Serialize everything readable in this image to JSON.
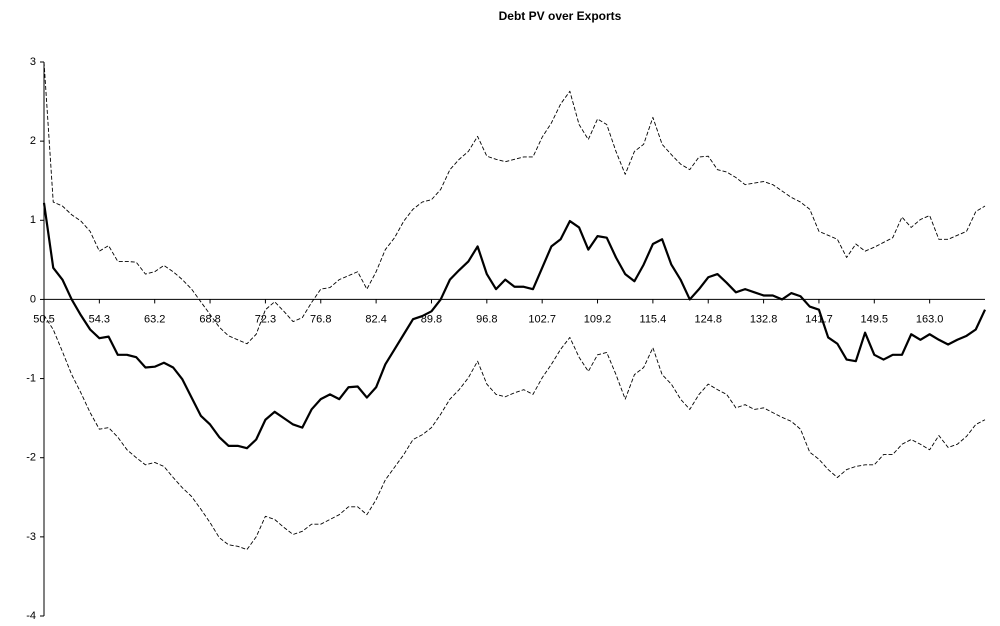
{
  "chart_data": {
    "type": "line",
    "title": "Debt PV over Exports",
    "categories": [
      "50.5",
      null,
      null,
      null,
      null,
      null,
      "54.3",
      null,
      null,
      null,
      null,
      null,
      "63.2",
      null,
      null,
      null,
      null,
      null,
      "68.8",
      null,
      null,
      null,
      null,
      null,
      "72.3",
      null,
      null,
      null,
      null,
      null,
      "76.8",
      null,
      null,
      null,
      null,
      null,
      "82.4",
      null,
      null,
      null,
      null,
      null,
      "89.8",
      null,
      null,
      null,
      null,
      null,
      "96.8",
      null,
      null,
      null,
      null,
      null,
      "102.7",
      null,
      null,
      null,
      null,
      null,
      "109.2",
      null,
      null,
      null,
      null,
      null,
      "115.4",
      null,
      null,
      null,
      null,
      null,
      "124.8",
      null,
      null,
      null,
      null,
      null,
      "132.8",
      null,
      null,
      null,
      null,
      null,
      "141.7",
      null,
      null,
      null,
      null,
      null,
      "149.5",
      null,
      null,
      null,
      null,
      null,
      "163.0",
      null,
      null,
      null,
      null,
      null,
      null
    ],
    "series": [
      {
        "color": "#000000",
        "dashed": false,
        "values": [
          1.22,
          0.4,
          0.25,
          0.0,
          -0.2,
          -0.38,
          -0.49,
          -0.47,
          -0.7,
          -0.7,
          -0.73,
          -0.86,
          -0.85,
          -0.8,
          -0.86,
          -1.01,
          -1.24,
          -1.47,
          -1.58,
          -1.74,
          -1.85,
          -1.85,
          -1.88,
          -1.77,
          -1.52,
          -1.42,
          -1.5,
          -1.58,
          -1.62,
          -1.39,
          -1.26,
          -1.2,
          -1.26,
          -1.11,
          -1.1,
          -1.24,
          -1.11,
          -0.82,
          -0.63,
          -0.44,
          -0.25,
          -0.21,
          -0.15,
          0,
          0.25,
          0.37,
          0.48,
          0.67,
          0.32,
          0.13,
          0.25,
          0.16,
          0.16,
          0.13,
          0.4,
          0.67,
          0.76,
          0.99,
          0.91,
          0.63,
          0.8,
          0.78,
          0.53,
          0.32,
          0.23,
          0.44,
          0.7,
          0.76,
          0.44,
          0.25,
          0,
          0.13,
          0.28,
          0.32,
          0.21,
          0.09,
          0.13,
          0.09,
          0.05,
          0.05,
          0,
          0.08,
          0.04,
          -0.09,
          -0.13,
          -0.48,
          -0.56,
          -0.76,
          -0.78,
          -0.42,
          -0.7,
          -0.76,
          -0.7,
          -0.7,
          -0.44,
          -0.51,
          -0.44,
          -0.51,
          -0.57,
          -0.51,
          -0.46,
          -0.38,
          -0.13
        ]
      },
      {
        "color": "#000000",
        "dashed": true,
        "values": [
          3.0,
          1.23,
          1.18,
          1.07,
          0.99,
          0.86,
          0.61,
          0.68,
          0.48,
          0.48,
          0.47,
          0.32,
          0.35,
          0.43,
          0.35,
          0.25,
          0.13,
          -0.03,
          -0.19,
          -0.35,
          -0.46,
          -0.51,
          -0.56,
          -0.44,
          -0.13,
          -0.03,
          -0.15,
          -0.28,
          -0.23,
          -0.04,
          0.13,
          0.15,
          0.25,
          0.3,
          0.35,
          0.13,
          0.35,
          0.63,
          0.78,
          0.99,
          1.14,
          1.23,
          1.26,
          1.39,
          1.64,
          1.77,
          1.87,
          2.06,
          1.81,
          1.77,
          1.74,
          1.77,
          1.8,
          1.8,
          2.05,
          2.23,
          2.47,
          2.63,
          2.21,
          2.02,
          2.28,
          2.21,
          1.87,
          1.58,
          1.87,
          1.96,
          2.3,
          1.96,
          1.83,
          1.71,
          1.64,
          1.8,
          1.81,
          1.64,
          1.61,
          1.54,
          1.45,
          1.47,
          1.49,
          1.45,
          1.37,
          1.29,
          1.23,
          1.14,
          0.86,
          0.81,
          0.76,
          0.53,
          0.7,
          0.61,
          0.66,
          0.72,
          0.78,
          1.04,
          0.91,
          1.01,
          1.06,
          0.76,
          0.76,
          0.81,
          0.86,
          1.11,
          1.18
        ]
      },
      {
        "color": "#000000",
        "dashed": true,
        "values": [
          -0.2,
          -0.38,
          -0.66,
          -0.95,
          -1.18,
          -1.43,
          -1.64,
          -1.62,
          -1.74,
          -1.9,
          -2.0,
          -2.09,
          -2.06,
          -2.11,
          -2.25,
          -2.38,
          -2.49,
          -2.65,
          -2.82,
          -3.01,
          -3.1,
          -3.12,
          -3.16,
          -3.0,
          -2.74,
          -2.78,
          -2.88,
          -2.97,
          -2.93,
          -2.84,
          -2.84,
          -2.78,
          -2.72,
          -2.62,
          -2.62,
          -2.72,
          -2.53,
          -2.28,
          -2.12,
          -1.96,
          -1.77,
          -1.71,
          -1.62,
          -1.45,
          -1.26,
          -1.14,
          -0.99,
          -0.78,
          -1.07,
          -1.2,
          -1.23,
          -1.18,
          -1.14,
          -1.2,
          -0.99,
          -0.82,
          -0.63,
          -0.48,
          -0.73,
          -0.91,
          -0.7,
          -0.67,
          -0.95,
          -1.26,
          -0.95,
          -0.86,
          -0.61,
          -0.95,
          -1.07,
          -1.26,
          -1.39,
          -1.2,
          -1.07,
          -1.14,
          -1.2,
          -1.37,
          -1.33,
          -1.39,
          -1.37,
          -1.43,
          -1.49,
          -1.54,
          -1.64,
          -1.93,
          -2.02,
          -2.15,
          -2.25,
          -2.15,
          -2.11,
          -2.09,
          -2.09,
          -1.96,
          -1.96,
          -1.83,
          -1.77,
          -1.83,
          -1.9,
          -1.72,
          -1.87,
          -1.83,
          -1.73,
          -1.58,
          -1.52
        ]
      }
    ],
    "ylim": [
      -4,
      3
    ],
    "yticks": [
      -4,
      -3,
      -2,
      -1,
      0,
      1,
      2,
      3
    ],
    "grid": false
  }
}
